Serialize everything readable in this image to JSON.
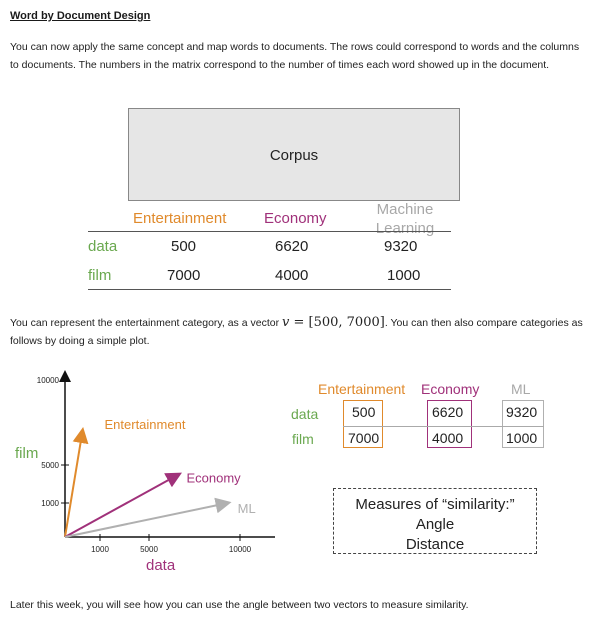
{
  "heading": "Word by Document Design",
  "intro": "You can now apply the same concept and map words to documents. The rows could correspond to words and the columns to documents. The numbers in the matrix correspond to the number of times each word showed up in the document.",
  "corpus_label": "Corpus",
  "matrix": {
    "columns": [
      "Entertainment",
      "Economy",
      "Machine Learning"
    ],
    "rows": [
      {
        "word": "data",
        "values": [
          "500",
          "6620",
          "9320"
        ]
      },
      {
        "word": "film",
        "values": [
          "7000",
          "4000",
          "1000"
        ]
      }
    ]
  },
  "vector_text": {
    "before": "You can represent the entertainment category, as a vector ",
    "math_var": "v",
    "math_rest": " = [500, 7000]",
    "after": ". You can then also compare categories as follows by doing a simple plot."
  },
  "chart_data": {
    "type": "line",
    "xlabel": "data",
    "ylabel": "film",
    "x_ticks": [
      "1000",
      "5000",
      "10000"
    ],
    "y_ticks": [
      "10000",
      "5000",
      "1000"
    ],
    "series": [
      {
        "name": "Entertainment",
        "color": "#e08a2c",
        "x": [
          0,
          500
        ],
        "y": [
          0,
          7000
        ]
      },
      {
        "name": "Economy",
        "color": "#a0317a",
        "x": [
          0,
          6620
        ],
        "y": [
          0,
          4000
        ]
      },
      {
        "name": "ML",
        "color": "#b0b0b0",
        "x": [
          0,
          9320
        ],
        "y": [
          0,
          1000
        ]
      }
    ]
  },
  "small_table": {
    "columns": [
      "Entertainment",
      "Economy",
      "ML"
    ],
    "rows": [
      {
        "word": "data",
        "values": [
          "500",
          "6620",
          "9320"
        ]
      },
      {
        "word": "film",
        "values": [
          "7000",
          "4000",
          "1000"
        ]
      }
    ]
  },
  "similarity": {
    "title": "Measures of “similarity:”",
    "items": [
      "Angle",
      "Distance"
    ]
  },
  "closing": "Later this week, you will see how you can use the angle between two vectors to measure similarity.",
  "colors": {
    "entertainment": "#e08a2c",
    "economy": "#a0317a",
    "ml": "#a8a8a8",
    "words": "#6aa84f"
  }
}
